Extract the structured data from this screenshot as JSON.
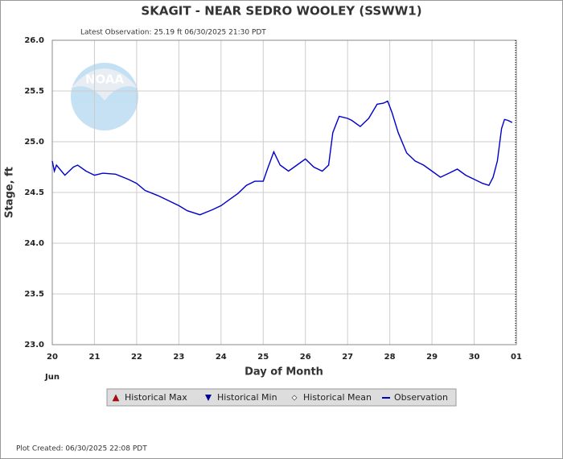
{
  "chart_data": {
    "type": "line",
    "title": "SKAGIT - NEAR SEDRO WOOLEY  (SSWW1)",
    "subtitle": "Latest Observation: 25.19 ft 06/30/2025 21:30 PDT",
    "footer": "Plot Created: 06/30/2025 22:08 PDT",
    "logo_text": "NOAA",
    "x_label": "Day of Month",
    "x_sublabel": "Jun",
    "y_label": "Stage, ft",
    "x": [
      20.0,
      20.05,
      20.1,
      20.3,
      20.5,
      20.6,
      20.8,
      21.0,
      21.2,
      21.5,
      21.8,
      22.0,
      22.2,
      22.5,
      22.7,
      23.0,
      23.2,
      23.5,
      23.8,
      24.0,
      24.2,
      24.4,
      24.6,
      24.8,
      25.0,
      25.1,
      25.25,
      25.4,
      25.6,
      25.8,
      26.0,
      26.2,
      26.4,
      26.55,
      26.65,
      26.8,
      27.0,
      27.1,
      27.3,
      27.5,
      27.7,
      27.85,
      27.95,
      28.05,
      28.2,
      28.4,
      28.6,
      28.8,
      29.0,
      29.2,
      29.4,
      29.6,
      29.8,
      30.0,
      30.2,
      30.35,
      30.45,
      30.55,
      30.65,
      30.72,
      30.8,
      30.9
    ],
    "series": [
      {
        "name": "Observation",
        "color": "#0000cc",
        "values": [
          24.81,
          24.71,
          24.77,
          24.67,
          24.75,
          24.77,
          24.71,
          24.67,
          24.69,
          24.68,
          24.63,
          24.59,
          24.52,
          24.47,
          24.43,
          24.37,
          24.32,
          24.28,
          24.33,
          24.37,
          24.43,
          24.49,
          24.57,
          24.61,
          24.61,
          24.73,
          24.9,
          24.77,
          24.71,
          24.77,
          24.83,
          24.75,
          24.71,
          24.77,
          25.09,
          25.25,
          25.23,
          25.21,
          25.15,
          25.23,
          25.37,
          25.38,
          25.4,
          25.29,
          25.09,
          24.89,
          24.81,
          24.77,
          24.71,
          24.65,
          24.69,
          24.73,
          24.67,
          24.63,
          24.59,
          24.57,
          24.65,
          24.81,
          25.13,
          25.22,
          25.21,
          25.19
        ]
      }
    ],
    "legend": [
      {
        "name": "Historical Max",
        "marker": "triangle-up",
        "color": "#cc0000"
      },
      {
        "name": "Historical Min",
        "marker": "triangle-down",
        "color": "#000099"
      },
      {
        "name": "Historical Mean",
        "marker": "diamond",
        "color": "#ffffff"
      },
      {
        "name": "Observation",
        "marker": "line",
        "color": "#0000cc"
      }
    ],
    "xlim": [
      20,
      31
    ],
    "xticks": [
      20,
      21,
      22,
      23,
      24,
      25,
      26,
      27,
      28,
      29,
      30,
      {
        "value": 31,
        "label": "01"
      }
    ],
    "ylim": [
      23,
      26
    ],
    "yticks": [
      {
        "value": 23,
        "label": "23.0"
      },
      23.5,
      {
        "value": 24,
        "label": "24.0"
      },
      24.5,
      {
        "value": 25,
        "label": "25.0"
      },
      25.5,
      {
        "value": 26,
        "label": "26.0"
      }
    ],
    "grid": true
  }
}
